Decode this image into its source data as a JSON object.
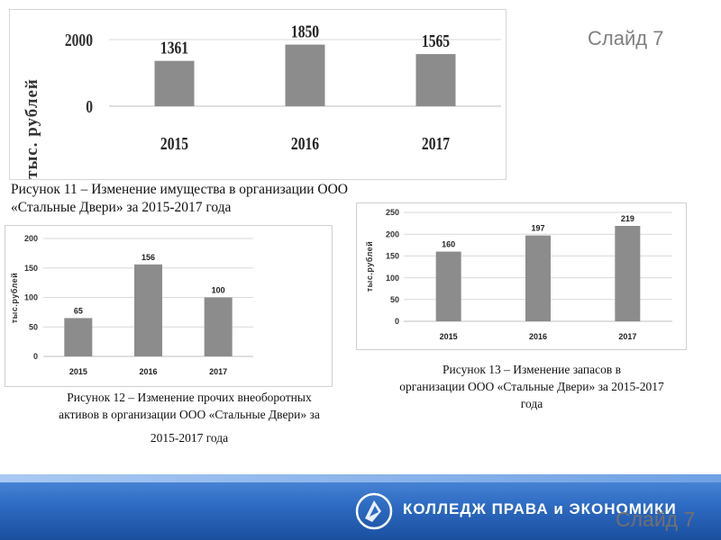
{
  "slide_label": "Слайд 7",
  "chart_data": [
    {
      "type": "bar",
      "categories": [
        "2015",
        "2016",
        "2017"
      ],
      "values": [
        1361,
        1850,
        1565
      ],
      "yticks": [
        "2000",
        "0"
      ],
      "ylabel": "тыс. рублей",
      "ylim": [
        0,
        2000
      ],
      "color": "#8c8c8c"
    },
    {
      "type": "bar",
      "categories": [
        "2015",
        "2016",
        "2017"
      ],
      "values": [
        65,
        156,
        100
      ],
      "yticks": [
        "0",
        "50",
        "100",
        "150",
        "200"
      ],
      "ylabel": "тыс.рублей",
      "ylim": [
        0,
        200
      ],
      "color": "#8c8c8c"
    },
    {
      "type": "bar",
      "categories": [
        "2015",
        "2016",
        "2017"
      ],
      "values": [
        160,
        197,
        219
      ],
      "yticks": [
        "0",
        "50",
        "100",
        "150",
        "200",
        "250"
      ],
      "ylabel": "тыс.рублей",
      "ylim": [
        0,
        250
      ],
      "color": "#8c8c8c"
    }
  ],
  "captions": {
    "fig11_line1": "Рисунок 11 – Изменение имущества в организации ООО",
    "fig11_line2": "«Стальные Двери» за 2015-2017 года",
    "fig12_line1": "Рисунок 12 – Изменение прочих внеоборотных",
    "fig12_line2": "активов в организации ООО «Стальные Двери» за",
    "fig12_line3": "2015-2017 года",
    "fig13_line1": "Рисунок 13 – Изменение запасов в",
    "fig13_line2": "организации ООО «Стальные Двери» за 2015-2017",
    "fig13_line3": "года"
  },
  "footer": {
    "title": "КОЛЛЕДЖ ПРАВА и ЭКОНОМИКИ",
    "logo_icon": "college-logo-icon",
    "colors": {
      "band": "#2f6cc4",
      "text": "#ffffff"
    }
  }
}
